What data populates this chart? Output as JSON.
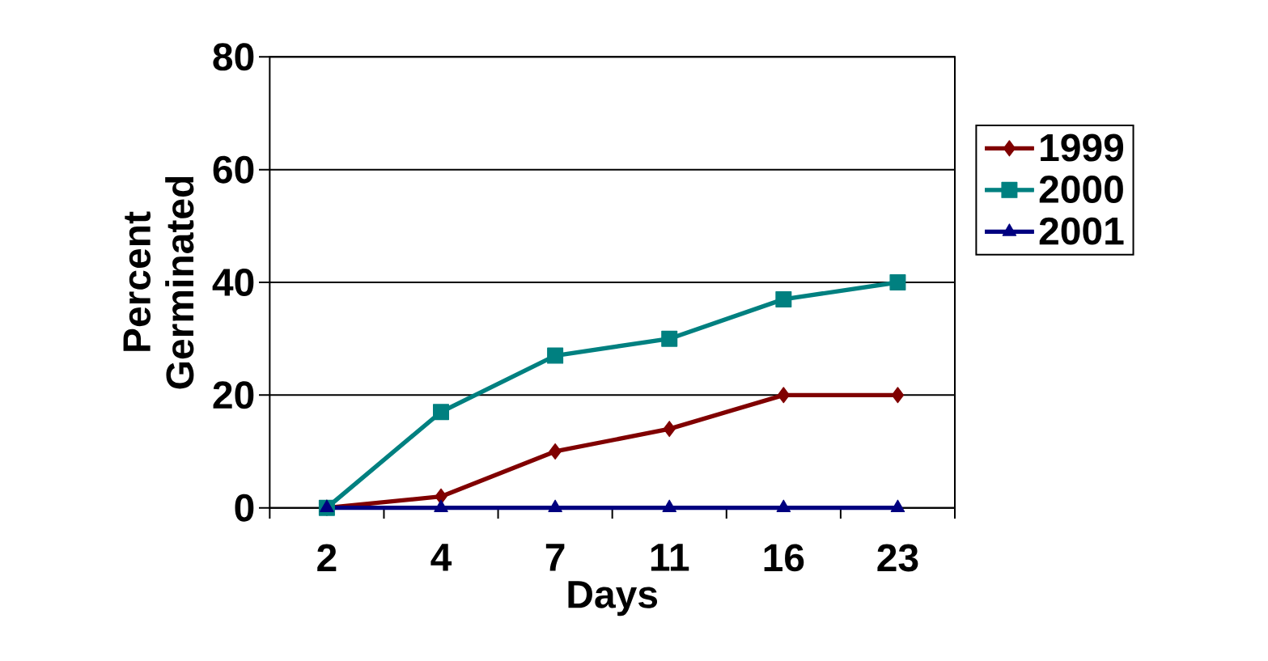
{
  "chart_data": {
    "type": "line",
    "xlabel": "Days",
    "ylabel": "Percent Germinated",
    "categories": [
      "2",
      "4",
      "7",
      "11",
      "16",
      "23"
    ],
    "series": [
      {
        "name": "1999",
        "color": "#800000",
        "marker": "diamond",
        "values": [
          0,
          2,
          10,
          14,
          20,
          20
        ]
      },
      {
        "name": "2000",
        "color": "#008080",
        "marker": "square",
        "values": [
          0,
          17,
          27,
          30,
          37,
          40
        ]
      },
      {
        "name": "2001",
        "color": "#000080",
        "marker": "triangle",
        "values": [
          0,
          0,
          0,
          0,
          0,
          0
        ]
      }
    ],
    "ylim": [
      0,
      80
    ],
    "yticks": [
      0,
      20,
      40,
      60,
      80
    ],
    "grid": "y",
    "legend": "right",
    "line_style": "solid"
  }
}
